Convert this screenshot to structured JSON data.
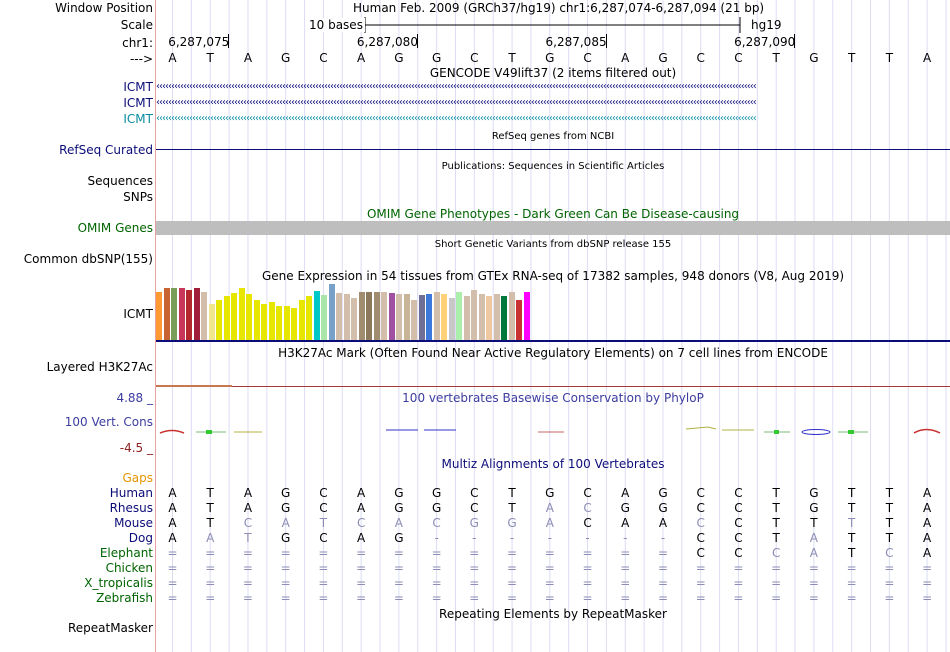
{
  "colors": {
    "gencode_blue": "#0c0c78",
    "gencode_teal": "#0a8ca0",
    "refseq_navy": "#0c0c78",
    "omim_green": "#006400",
    "gray_bar": "#bebebe",
    "phylop_label": "#3c3ca0",
    "neg_value": "#8c1e1e",
    "gaps_orange": "#e69600",
    "guide_line": "#c8c8ff",
    "left_border": "#e6a0a0",
    "h3k27ac_line": "#a03c3c"
  },
  "header": {
    "window_position_label": "Window Position",
    "window_position_value": "Human Feb. 2009 (GRCh37/hg19)   chr1:6,287,074-6,287,094 (21 bp)",
    "scale_label": "Scale",
    "scale_bar_text": "10 bases",
    "scale_assembly": "hg19",
    "chr_label": "chr1:",
    "coord_ticks": [
      "6,287,075",
      "6,287,080",
      "6,287,085",
      "6,287,090"
    ],
    "strand_label": "--->",
    "bases": [
      "A",
      "T",
      "A",
      "G",
      "C",
      "A",
      "G",
      "G",
      "C",
      "T",
      "G",
      "C",
      "A",
      "G",
      "C",
      "C",
      "T",
      "G",
      "T",
      "T",
      "A"
    ]
  },
  "gencode": {
    "title": "GENCODE V49lift37 (2 items filtered out)",
    "rows": [
      {
        "label": "ICMT",
        "color": "#0c0c78"
      },
      {
        "label": "ICMT",
        "color": "#0c0c78"
      },
      {
        "label": "ICMT",
        "color": "#0a8ca0"
      }
    ]
  },
  "refseq": {
    "title": "RefSeq genes from NCBI",
    "label": "RefSeq Curated"
  },
  "publications": {
    "title": "Publications: Sequences in Scientific Articles",
    "labels": [
      "Sequences",
      "SNPs"
    ]
  },
  "omim": {
    "title": "OMIM Gene Phenotypes - Dark Green Can Be Disease-causing",
    "label": "OMIM Genes"
  },
  "dbsnp": {
    "title": "Short Genetic Variants from dbSNP release 155",
    "label": "Common dbSNP(155)"
  },
  "gtex": {
    "title": "Gene Expression in 54 tissues from GTEx RNA-seq of 17382 samples, 948 donors (V8, Aug 2019)",
    "label": "ICMT"
  },
  "h3k27ac": {
    "title": "H3K27Ac Mark (Often Found Near Active Regulatory Elements) on 7 cell lines from ENCODE",
    "label": "Layered H3K27Ac"
  },
  "phylop": {
    "title": "100 vertebrates Basewise Conservation by PhyloP",
    "label": "100 Vert. Cons",
    "max_label": "4.88 _",
    "min_label": "-4.5 _"
  },
  "multiz": {
    "title": "Multiz Alignments of 100 Vertebrates",
    "gaps_label": "Gaps",
    "species": [
      {
        "name": "Human",
        "seq": "ATAGCAGGCTGCAGCCTGTTA",
        "dim": "000000000000000000000"
      },
      {
        "name": "Rhesus",
        "seq": "ATAGCAGGCTACGGCCTGTTA",
        "dim": "000000000011000000000"
      },
      {
        "name": "Mouse",
        "seq": "ATCATCACGGACAACCTTTTA",
        "dim": "001111111110001000100"
      },
      {
        "name": "Dog",
        "seq": "AATGCAG-------CCTATTA",
        "dim": "011000000000000001000"
      },
      {
        "name": "Elephant",
        "seq": "==============CCCATCA",
        "dim": "000000000000000011010"
      },
      {
        "name": "Chicken",
        "seq": "=====================",
        "dim": "000000000000000000000"
      },
      {
        "name": "X_tropicalis",
        "seq": "=====================",
        "dim": "000000000000000000000"
      },
      {
        "name": "Zebrafish",
        "seq": "=====================",
        "dim": "000000000000000000000"
      }
    ]
  },
  "repeatmasker": {
    "title": "Repeating Elements by RepeatMasker",
    "label": "RepeatMasker"
  }
}
